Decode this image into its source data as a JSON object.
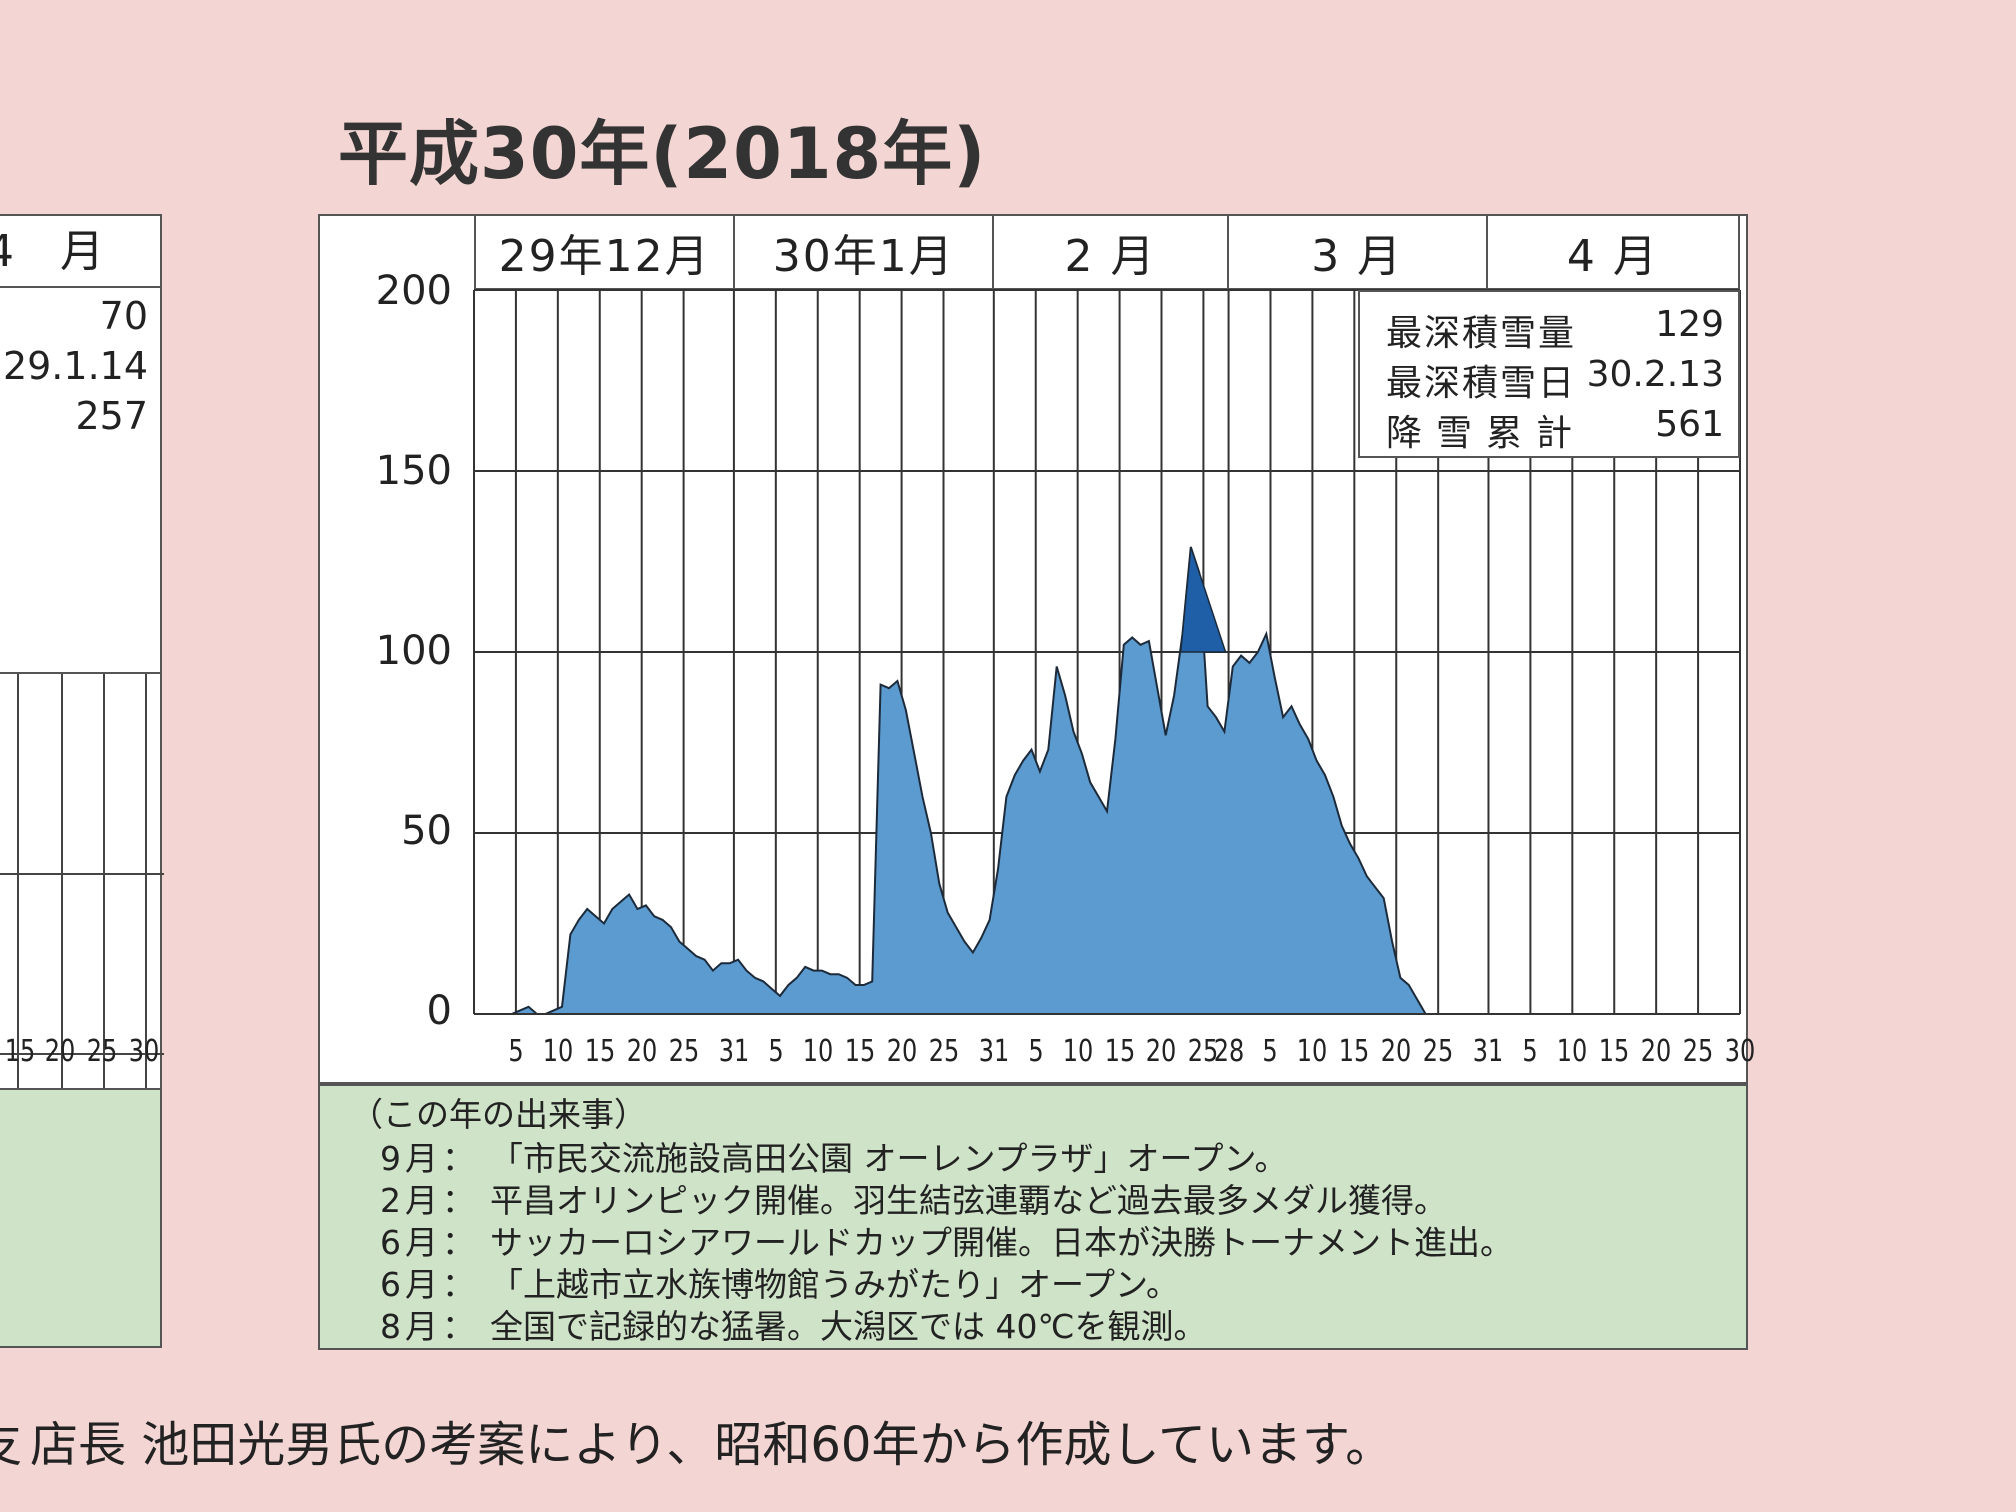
{
  "title": "平成30年(2018年)",
  "left_panel": {
    "month_fragment": "4",
    "month_label": "月",
    "stats": [
      "70",
      "29.1.14",
      "257"
    ],
    "ticks": [
      "15",
      "20",
      "25",
      "30"
    ]
  },
  "stats": [
    {
      "label": "最深積雪量",
      "value": "129"
    },
    {
      "label": "最深積雪日",
      "value": "30.2.13"
    },
    {
      "label": "降雪累計",
      "value": "561"
    }
  ],
  "notes": {
    "heading": "（この年の出来事）",
    "events": [
      {
        "month": "9月：",
        "text": "「市民交流施設高田公園 オーレンプラザ」オープン。"
      },
      {
        "month": "2月：",
        "text": "平昌オリンピック開催。羽生結弦連覇など過去最多メダル獲得。"
      },
      {
        "month": "6月：",
        "text": "サッカーロシアワールドカップ開催。日本が決勝トーナメント進出。"
      },
      {
        "month": "6月：",
        "text": "「上越市立水族博物館うみがたり」オープン。"
      },
      {
        "month": "8月：",
        "text": "全国で記録的な猛暑。大潟区では 40℃を観測。"
      }
    ]
  },
  "footer": {
    "fragment": "支",
    "text": "店長 池田光男氏の考案により、昭和60年から作成しています。"
  },
  "chart_data": {
    "type": "area",
    "title": "平成30年(2018年)",
    "xlabel": "",
    "ylabel": "",
    "ylim": [
      0,
      200
    ],
    "y_ticks": [
      0,
      50,
      100,
      150,
      200
    ],
    "grid": true,
    "months": [
      {
        "label": "29年12月",
        "days": 31
      },
      {
        "label": "30年1月",
        "days": 31
      },
      {
        "label": "2  月",
        "days": 28
      },
      {
        "label": "3  月",
        "days": 31
      },
      {
        "label": "4  月",
        "days": 30
      }
    ],
    "x_ticks": [
      "5",
      "10",
      "15",
      "20",
      "25",
      "31",
      "5",
      "10",
      "15",
      "20",
      "25",
      "31",
      "5",
      "10",
      "15",
      "20",
      "25",
      "28",
      "5",
      "10",
      "15",
      "20",
      "25",
      "31",
      "5",
      "10",
      "15",
      "20",
      "25",
      "30"
    ],
    "fill_color": "#5b9bd0",
    "peak_color": "#1f5fa8",
    "series": [
      {
        "start_date": "2017-12-01",
        "values": [
          0,
          0,
          0,
          0,
          0,
          1,
          2,
          0,
          0,
          1,
          2,
          22,
          26,
          29,
          27,
          25,
          29,
          31,
          33,
          29,
          30,
          27,
          26,
          24,
          20,
          18,
          16,
          15,
          12,
          14,
          14,
          15,
          12,
          10,
          9,
          7,
          5,
          8,
          10,
          13,
          12,
          12,
          11,
          11,
          10,
          8,
          8,
          9,
          91,
          90,
          92,
          84,
          72,
          60,
          50,
          36,
          28,
          24,
          20,
          17,
          21,
          26,
          40,
          60,
          66,
          70,
          73,
          67,
          73,
          96,
          88,
          78,
          72,
          64,
          60,
          56,
          76,
          102,
          104,
          102,
          103,
          90,
          77,
          88,
          105,
          129,
          122,
          85,
          82,
          78,
          96,
          99,
          97,
          100,
          105,
          93,
          82,
          85,
          80,
          76,
          70,
          66,
          60,
          52,
          47,
          43,
          38,
          35,
          32,
          20,
          10,
          8,
          4,
          0
        ]
      }
    ]
  }
}
